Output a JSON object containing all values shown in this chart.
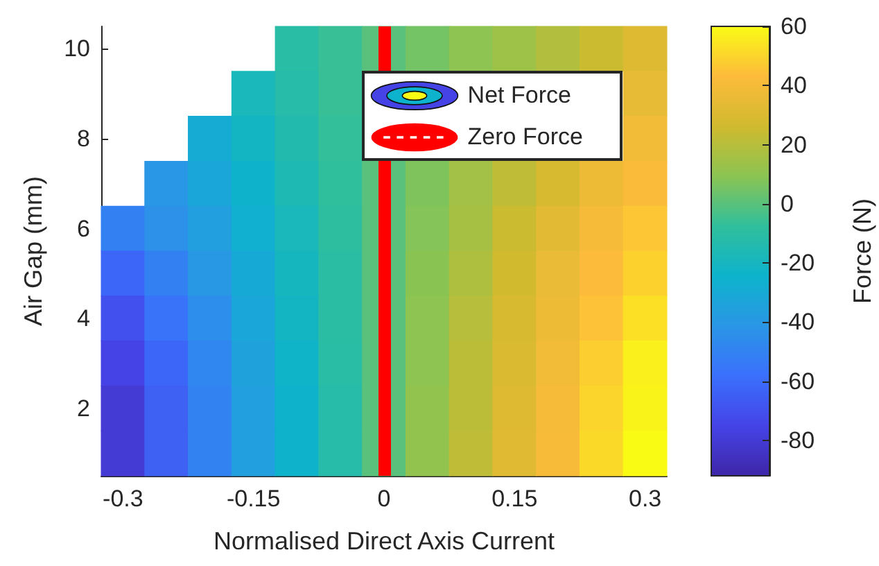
{
  "chart_data": {
    "type": "heatmap",
    "xlabel": "Normalised Direct Axis Current",
    "ylabel": "Air Gap (mm)",
    "clabel": "Force (N)",
    "categories": [
      "-0.3",
      null,
      null,
      "-0.15",
      null,
      null,
      "0",
      null,
      null,
      "0.15",
      null,
      null,
      "0.3"
    ],
    "y_categories": [
      "10",
      null,
      "8",
      null,
      "6",
      null,
      "4",
      null,
      "2",
      null
    ],
    "annotations": [
      "Net Force"
    ],
    "cells": [
      [
        null,
        null,
        null,
        null,
        -11,
        -6,
        0,
        5,
        10,
        14,
        19,
        25,
        31
      ],
      [
        null,
        null,
        null,
        -18,
        -12,
        -6,
        null,
        null,
        null,
        null,
        null,
        null,
        35
      ],
      [
        null,
        null,
        -29,
        -21,
        -14,
        -7,
        null,
        null,
        null,
        null,
        null,
        null,
        39
      ],
      [
        null,
        -41,
        -32,
        -24,
        -16,
        -8,
        0,
        7,
        15,
        22,
        29,
        37,
        42
      ],
      [
        -51,
        -44,
        -36,
        -27,
        -18,
        -9,
        0,
        8,
        16,
        25,
        33,
        40,
        46
      ],
      [
        -62,
        -51,
        -40,
        -30,
        -20,
        -10,
        0,
        9,
        18,
        27,
        36,
        43,
        49
      ],
      [
        -70,
        -57,
        -45,
        -32,
        -21,
        -10,
        0,
        10,
        20,
        29,
        37,
        45,
        53
      ],
      [
        -75,
        -62,
        -48,
        -35,
        -23,
        -11,
        0,
        10,
        21,
        30,
        39,
        48,
        57
      ],
      [
        -80,
        -64,
        -50,
        -36,
        -24,
        -12,
        0,
        11,
        21,
        31,
        40,
        50,
        58
      ],
      [
        -80,
        -64,
        -50,
        -36,
        -24,
        -12,
        0,
        11,
        22,
        32,
        41,
        51,
        60
      ]
    ],
    "ref_lines": [
      {
        "axis": "x",
        "value": "0",
        "label": "Zero Force",
        "color": "#ff0000"
      }
    ],
    "clim": [
      -92,
      60
    ],
    "cticks": [
      -80,
      -60,
      -40,
      -20,
      0,
      20,
      40,
      60
    ],
    "legend": "top right"
  }
}
